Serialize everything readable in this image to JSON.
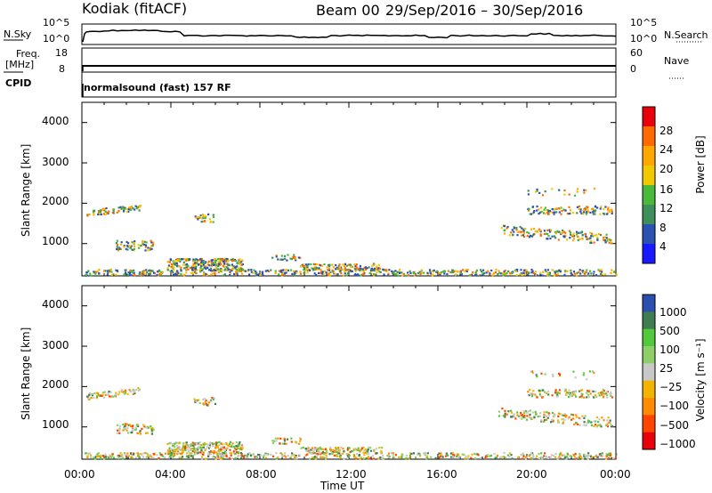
{
  "header": {
    "station": "Kodiak (fitACF)",
    "beam": "Beam 00",
    "date_range": "29/Sep/2016 – 30/Sep/2016"
  },
  "top_panels": {
    "nsky_label": "N.Sky",
    "nsearch_label": "N.Search",
    "nsky_ticks": [
      "10^5",
      "10^0"
    ],
    "nsearch_ticks": [
      "10^5",
      "10^0"
    ],
    "freq_label": "Freq.",
    "freq_unit": "[MHz]",
    "freq_ticks": [
      "18",
      "8"
    ],
    "nave_label": "Nave",
    "nave_ticks": [
      "60",
      "0"
    ],
    "cpid_label": "CPID",
    "cpid_value": "normalsound (fast) 157 RF"
  },
  "chart_data": [
    {
      "type": "heatmap",
      "name": "power",
      "ylabel": "Slant Range [km]",
      "yticks": [
        "4000",
        "3000",
        "2000",
        "1000"
      ],
      "ylim": [
        200,
        4500
      ],
      "xlim": [
        0,
        24
      ],
      "colorbar_label": "Power [dB]",
      "colorbar_ticks": [
        "28",
        "24",
        "20",
        "16",
        "12",
        "8",
        "4"
      ],
      "colorbar_colors": [
        "#e8000b",
        "#ff6a00",
        "#ffa800",
        "#f2c800",
        "#49b93a",
        "#3f8f5a",
        "#2a52b0",
        "#1919ff"
      ]
    },
    {
      "type": "heatmap",
      "name": "velocity",
      "ylabel": "Slant Range [km]",
      "yticks": [
        "4000",
        "3000",
        "2000",
        "1000"
      ],
      "ylim": [
        200,
        4500
      ],
      "xlim": [
        0,
        24
      ],
      "colorbar_label": "Velocity [m s⁻¹]",
      "colorbar_ticks": [
        "1000",
        "500",
        "100",
        "25",
        "−25",
        "−100",
        "−500",
        "−1000"
      ],
      "colorbar_colors": [
        "#2a4fb0",
        "#3f7c52",
        "#52c93a",
        "#8ecf6a",
        "#c8c8c8",
        "#f2b400",
        "#ff8c00",
        "#ff4500",
        "#e8000b"
      ]
    }
  ],
  "x_axis": {
    "ticks": [
      "00:00",
      "04:00",
      "08:00",
      "12:00",
      "16:00",
      "20:00",
      "00:00"
    ],
    "label": "Time UT"
  }
}
